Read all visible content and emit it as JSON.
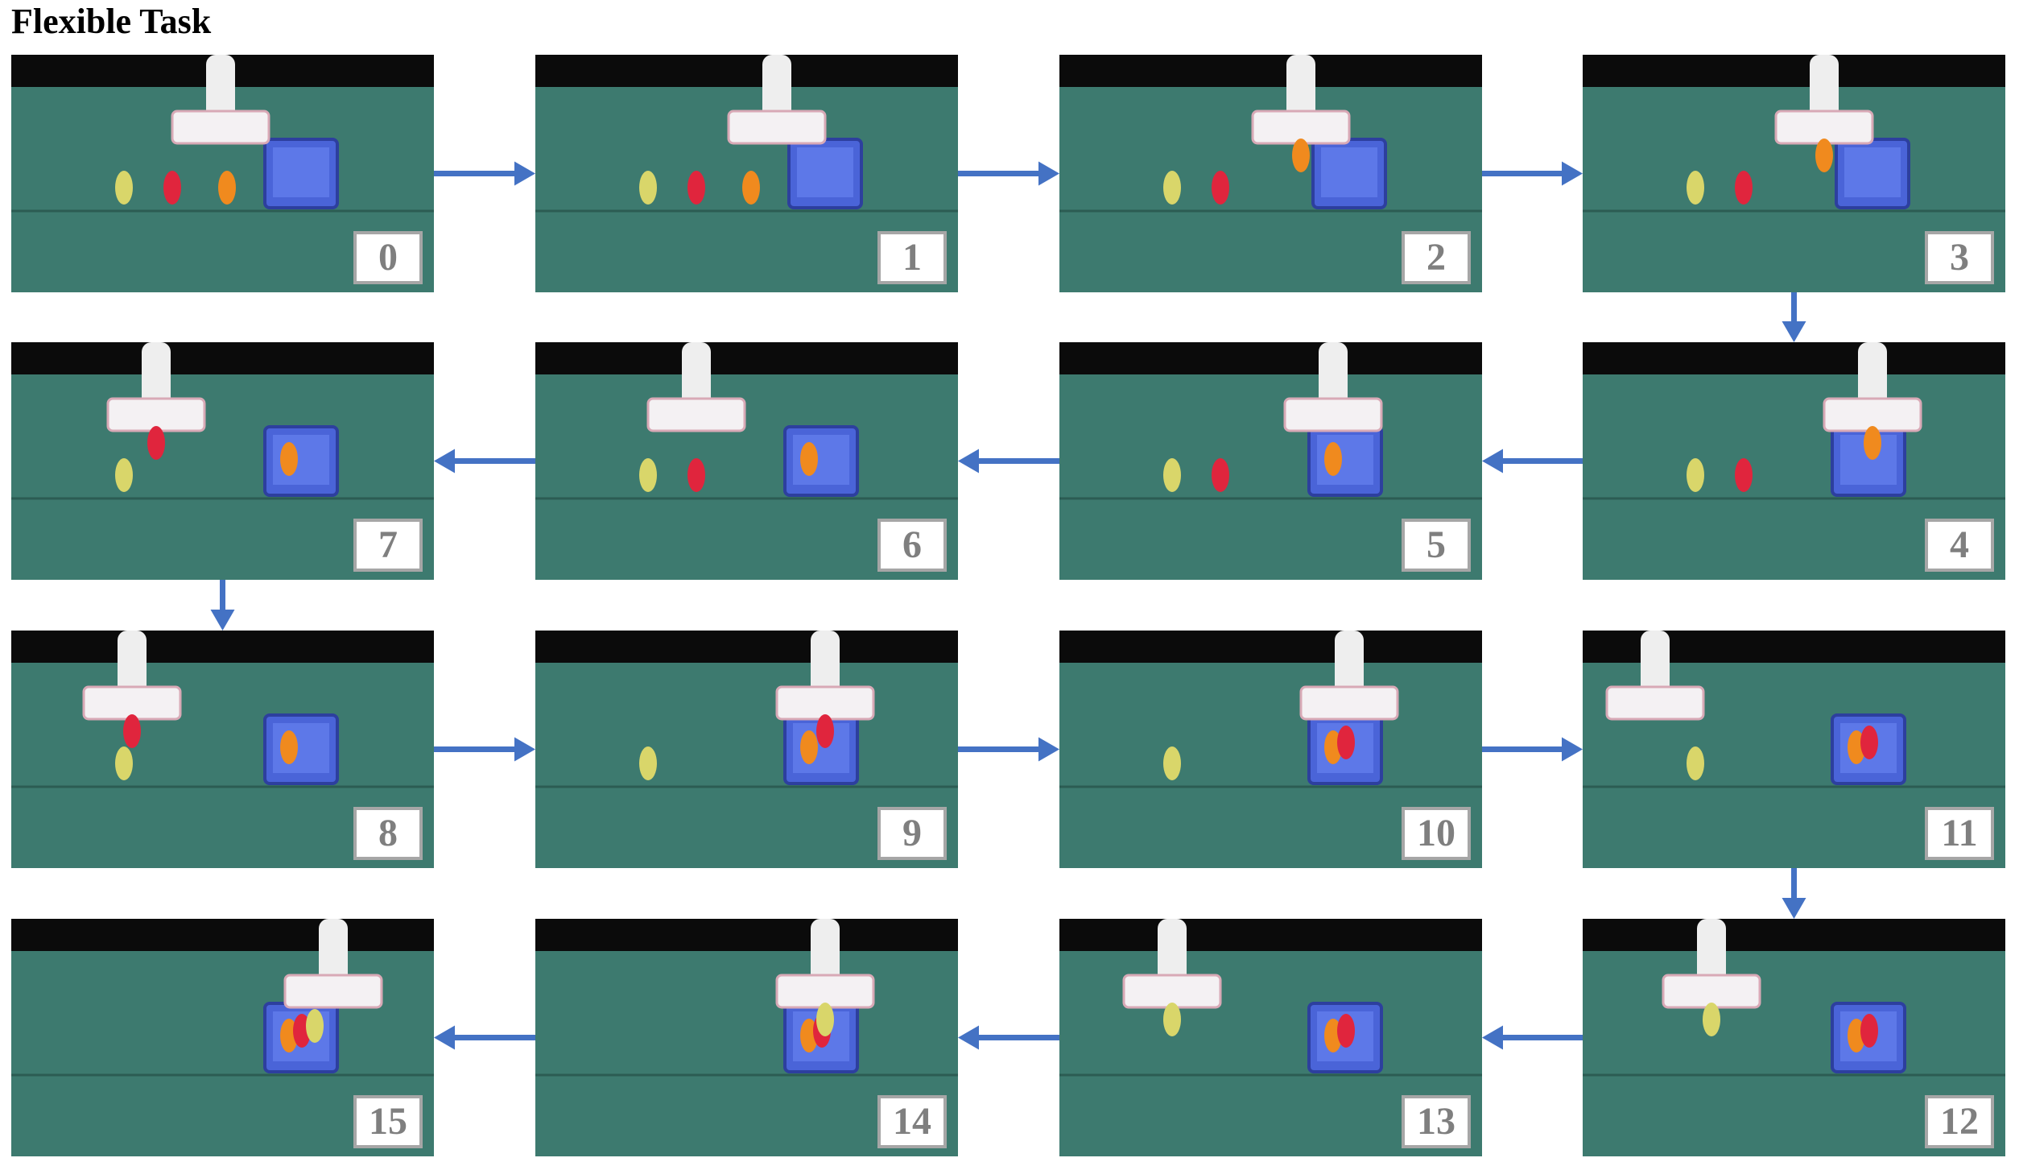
{
  "title": "Flexible Task",
  "colors": {
    "arrow": "#4472c4",
    "table": "#3d7a6f",
    "bin": "#4a64d8",
    "label_border": "#a6a6a6",
    "label_text": "#7f7f7f"
  },
  "frames": [
    {
      "label": "0",
      "items_on_table": [
        "yellow",
        "red",
        "orange"
      ],
      "items_in_bin": [],
      "gripper_holding": ""
    },
    {
      "label": "1",
      "items_on_table": [
        "yellow",
        "red",
        "orange"
      ],
      "items_in_bin": [],
      "gripper_holding": ""
    },
    {
      "label": "2",
      "items_on_table": [
        "yellow",
        "red"
      ],
      "items_in_bin": [],
      "gripper_holding": "orange"
    },
    {
      "label": "3",
      "items_on_table": [
        "yellow",
        "red"
      ],
      "items_in_bin": [],
      "gripper_holding": "orange"
    },
    {
      "label": "4",
      "items_on_table": [
        "yellow",
        "red"
      ],
      "items_in_bin": [],
      "gripper_holding": "orange"
    },
    {
      "label": "5",
      "items_on_table": [
        "yellow",
        "red"
      ],
      "items_in_bin": [
        "orange"
      ],
      "gripper_holding": ""
    },
    {
      "label": "6",
      "items_on_table": [
        "yellow",
        "red"
      ],
      "items_in_bin": [
        "orange"
      ],
      "gripper_holding": ""
    },
    {
      "label": "7",
      "items_on_table": [
        "yellow"
      ],
      "items_in_bin": [
        "orange"
      ],
      "gripper_holding": "red"
    },
    {
      "label": "8",
      "items_on_table": [
        "yellow"
      ],
      "items_in_bin": [
        "orange"
      ],
      "gripper_holding": "red"
    },
    {
      "label": "9",
      "items_on_table": [
        "yellow"
      ],
      "items_in_bin": [
        "orange"
      ],
      "gripper_holding": "red"
    },
    {
      "label": "10",
      "items_on_table": [
        "yellow"
      ],
      "items_in_bin": [
        "orange",
        "red"
      ],
      "gripper_holding": ""
    },
    {
      "label": "11",
      "items_on_table": [
        "yellow"
      ],
      "items_in_bin": [
        "orange",
        "red"
      ],
      "gripper_holding": ""
    },
    {
      "label": "12",
      "items_on_table": [],
      "items_in_bin": [
        "orange",
        "red"
      ],
      "gripper_holding": "yellow"
    },
    {
      "label": "13",
      "items_on_table": [],
      "items_in_bin": [
        "orange",
        "red"
      ],
      "gripper_holding": "yellow"
    },
    {
      "label": "14",
      "items_on_table": [],
      "items_in_bin": [
        "orange",
        "red"
      ],
      "gripper_holding": "yellow"
    },
    {
      "label": "15",
      "items_on_table": [],
      "items_in_bin": [
        "orange",
        "red",
        "yellow"
      ],
      "gripper_holding": ""
    }
  ]
}
